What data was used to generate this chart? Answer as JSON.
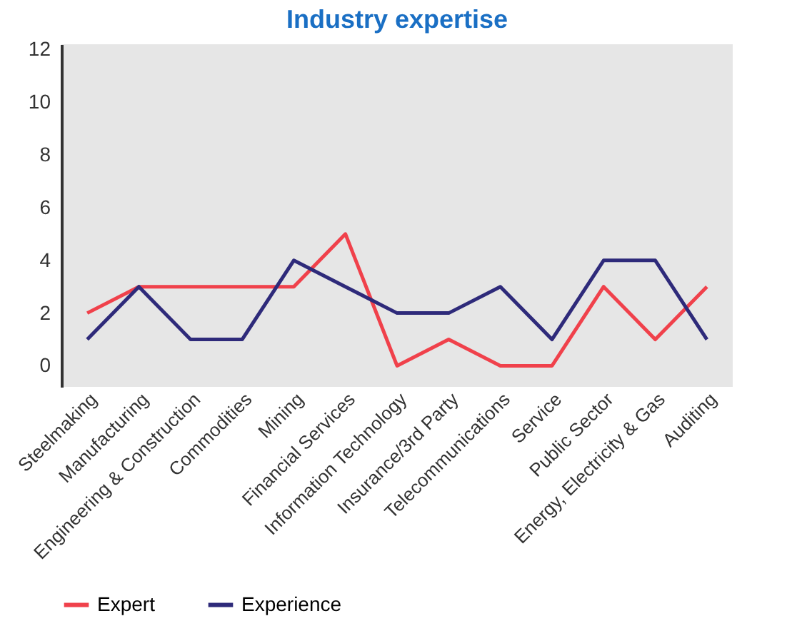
{
  "chart_data": {
    "type": "line",
    "title": "Industry expertise",
    "categories": [
      "Steelmaking",
      "Manufacturing",
      "Engineering & Construction",
      "Commodities",
      "Mining",
      "Financial Services",
      "Information Technology",
      "Insurance/3rd Party",
      "Telecommunications",
      "Service",
      "Public Sector",
      "Energy, Electricity & Gas",
      "Auditing"
    ],
    "series": [
      {
        "name": "Expert",
        "color": "#f0414b",
        "values": [
          2,
          3,
          3,
          3,
          3,
          5,
          0,
          1,
          0,
          0,
          3,
          1,
          3
        ]
      },
      {
        "name": "Experience",
        "color": "#2e2a7a",
        "values": [
          1,
          3,
          1,
          1,
          4,
          3,
          2,
          2,
          3,
          1,
          4,
          4,
          1
        ]
      }
    ],
    "ylim": [
      -0.8,
      12.2
    ],
    "yticks": [
      0,
      2,
      4,
      6,
      8,
      10,
      12
    ],
    "grid": false,
    "legend": "bottom",
    "marker": "none",
    "line_style": "solid"
  }
}
